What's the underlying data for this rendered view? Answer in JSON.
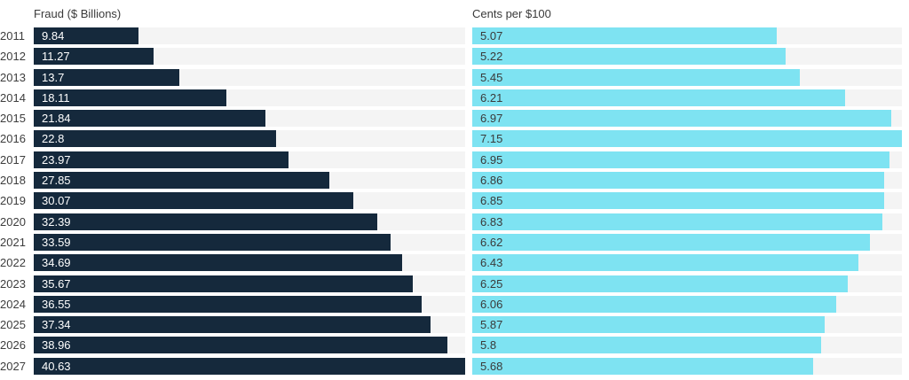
{
  "categories": [
    "2011",
    "2012",
    "2013",
    "2014",
    "2015",
    "2016",
    "2017",
    "2018",
    "2019",
    "2020",
    "2021",
    "2022",
    "2023",
    "2024",
    "2025",
    "2026",
    "2027"
  ],
  "chart_data": [
    {
      "type": "bar",
      "orientation": "horizontal",
      "title": "Fraud ($ Billions)",
      "categories": [
        "2011",
        "2012",
        "2013",
        "2014",
        "2015",
        "2016",
        "2017",
        "2018",
        "2019",
        "2020",
        "2021",
        "2022",
        "2023",
        "2024",
        "2025",
        "2026",
        "2027"
      ],
      "values": [
        9.84,
        11.27,
        13.7,
        18.11,
        21.84,
        22.8,
        23.97,
        27.85,
        30.07,
        32.39,
        33.59,
        34.69,
        35.67,
        36.55,
        37.34,
        38.96,
        40.63
      ],
      "value_labels": [
        "9.84",
        "11.27",
        "13.7",
        "18.11",
        "21.84",
        "22.8",
        "23.97",
        "27.85",
        "30.07",
        "32.39",
        "33.59",
        "34.69",
        "35.67",
        "36.55",
        "37.34",
        "38.96",
        "40.63"
      ],
      "xlim": [
        0,
        40.63
      ],
      "bar_color": "#15293C",
      "track_color": "#F4F4F4",
      "value_label_color": "#FFFFFF",
      "value_label_position": "inside-start",
      "grid": false,
      "legend": false
    },
    {
      "type": "bar",
      "orientation": "horizontal",
      "title": "Cents per $100",
      "categories": [
        "2011",
        "2012",
        "2013",
        "2014",
        "2015",
        "2016",
        "2017",
        "2018",
        "2019",
        "2020",
        "2021",
        "2022",
        "2023",
        "2024",
        "2025",
        "2026",
        "2027"
      ],
      "values": [
        5.07,
        5.22,
        5.45,
        6.21,
        6.97,
        7.15,
        6.95,
        6.86,
        6.85,
        6.83,
        6.62,
        6.43,
        6.25,
        6.06,
        5.87,
        5.8,
        5.68
      ],
      "value_labels": [
        "5.07",
        "5.22",
        "5.45",
        "6.21",
        "6.97",
        "7.15",
        "6.95",
        "6.86",
        "6.85",
        "6.83",
        "6.62",
        "6.43",
        "6.25",
        "6.06",
        "5.87",
        "5.8",
        "5.68"
      ],
      "xlim": [
        0,
        7.15
      ],
      "bar_color": "#7EE3F2",
      "track_color": "#F4F4F4",
      "value_label_color": "#3A3A3A",
      "value_label_position": "inside-start",
      "grid": false,
      "legend": false
    }
  ]
}
